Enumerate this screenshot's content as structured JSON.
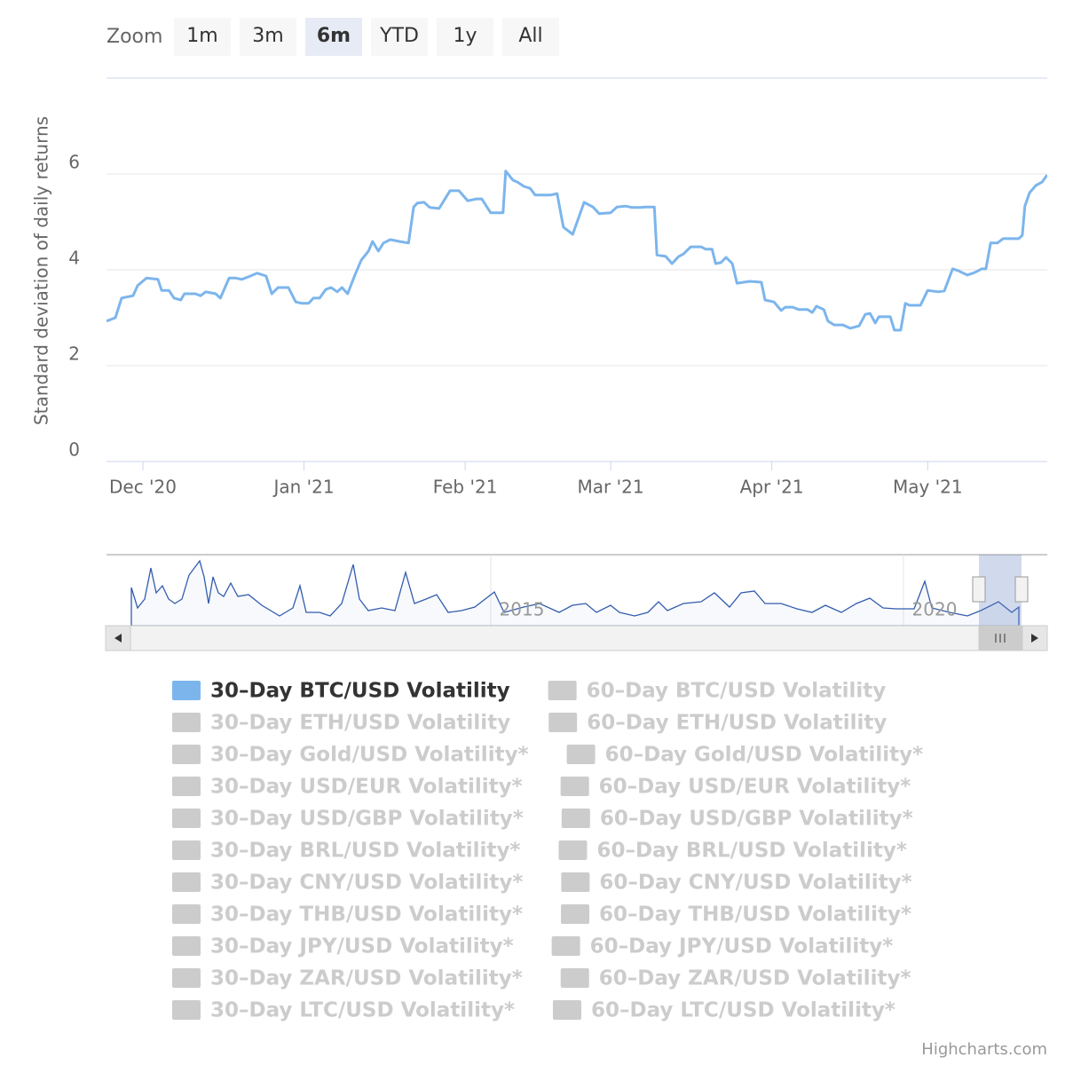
{
  "chart_data": {
    "type": "line",
    "zoom_label": "Zoom",
    "zoom_buttons": [
      "1m",
      "3m",
      "6m",
      "YTD",
      "1y",
      "All"
    ],
    "zoom_selected": 2,
    "y_label": "Standard deviation of daily returns",
    "x": [
      0,
      1.7,
      2.9,
      5.1,
      6.0,
      7.7,
      9.9,
      10.6,
      12.0,
      13.0,
      14.3,
      15.0,
      17.1,
      18.1,
      19.1,
      21.0,
      21.9,
      23.6,
      24.8,
      26.0,
      27.7,
      29.0,
      30.7,
      31.8,
      33.0,
      35.0,
      36.4,
      37.6,
      38.9,
      39.8,
      41.0,
      42.2,
      43.2,
      44.4,
      45.3,
      46.4,
      47.8,
      49.0,
      50.4,
      51.2,
      52.3,
      53.3,
      54.6,
      56.4,
      58.1,
      59.1,
      59.8,
      61.1,
      62.2,
      64.0,
      64.9,
      66.1,
      67.8,
      69.5,
      71.2,
      72.2,
      73.9,
      75.1,
      76.3,
      76.8,
      78.2,
      79.1,
      80.3,
      81.5,
      82.5,
      85.4,
      86.7,
      87.9,
      89.7,
      91.9,
      93.6,
      94.8,
      97.0,
      98.2,
      99.9,
      101.1,
      102.8,
      103.7,
      105.4,
      105.9,
      107.6,
      108.8,
      110.1,
      111.0,
      112.4,
      114.4,
      115.3,
      116.5,
      117.2,
      118.2,
      119.2,
      120.4,
      121.3,
      122.6,
      123.8,
      126.0,
      126.7,
      128.4,
      129.8,
      130.6,
      132.0,
      133.2,
      134.9,
      135.8,
      136.6,
      138.0,
      138.8,
      140.0,
      141.7,
      143.1,
      144.8,
      146.0,
      146.9,
      147.9,
      148.6,
      150.8,
      151.6,
      152.8,
      153.7,
      154.5,
      156.6,
      158.0,
      160.0,
      161.2,
      162.8,
      163.9,
      165.6,
      167.0,
      168.4,
      169.2,
      170.1,
      171.4,
      172.5,
      175.5,
      176.2,
      176.7,
      177.6,
      178.8,
      180.0,
      181.0
    ],
    "series": [
      {
        "name": "30–Day BTC/USD Volatility",
        "color": "#7cb5ec",
        "values": [
          2.93,
          3.0,
          3.41,
          3.46,
          3.67,
          3.83,
          3.8,
          3.57,
          3.57,
          3.41,
          3.37,
          3.5,
          3.5,
          3.46,
          3.54,
          3.5,
          3.41,
          3.83,
          3.83,
          3.8,
          3.87,
          3.93,
          3.87,
          3.5,
          3.63,
          3.63,
          3.33,
          3.3,
          3.3,
          3.41,
          3.41,
          3.59,
          3.63,
          3.54,
          3.63,
          3.5,
          3.89,
          4.2,
          4.39,
          4.59,
          4.39,
          4.56,
          4.63,
          4.59,
          4.56,
          5.31,
          5.39,
          5.41,
          5.3,
          5.28,
          5.44,
          5.65,
          5.65,
          5.44,
          5.48,
          5.48,
          5.19,
          5.19,
          5.19,
          6.06,
          5.87,
          5.83,
          5.74,
          5.7,
          5.56,
          5.56,
          5.59,
          4.89,
          4.74,
          5.41,
          5.31,
          5.17,
          5.19,
          5.31,
          5.33,
          5.3,
          5.3,
          5.31,
          5.31,
          4.31,
          4.28,
          4.13,
          4.28,
          4.33,
          4.48,
          4.48,
          4.43,
          4.43,
          4.13,
          4.15,
          4.26,
          4.13,
          3.72,
          3.74,
          3.76,
          3.74,
          3.37,
          3.33,
          3.15,
          3.22,
          3.22,
          3.17,
          3.17,
          3.11,
          3.24,
          3.17,
          2.93,
          2.85,
          2.85,
          2.78,
          2.83,
          3.07,
          3.09,
          2.89,
          3.02,
          3.02,
          2.74,
          2.74,
          3.3,
          3.26,
          3.26,
          3.57,
          3.54,
          3.56,
          4.02,
          3.98,
          3.89,
          3.94,
          4.02,
          4.02,
          4.56,
          4.56,
          4.65,
          4.65,
          4.72,
          5.33,
          5.61,
          5.76,
          5.83,
          5.98
        ]
      }
    ],
    "hidden_series": [
      {
        "name": "60–Day BTC/USD Volatility",
        "color": "#cccccc"
      },
      {
        "name": "30–Day ETH/USD Volatility",
        "color": "#cccccc"
      },
      {
        "name": "60–Day ETH/USD Volatility",
        "color": "#cccccc"
      },
      {
        "name": "30–Day Gold/USD Volatility*",
        "color": "#cccccc"
      },
      {
        "name": "60–Day Gold/USD Volatility*",
        "color": "#cccccc"
      },
      {
        "name": "30–Day USD/EUR Volatility*",
        "color": "#cccccc"
      },
      {
        "name": "60–Day USD/EUR Volatility*",
        "color": "#cccccc"
      },
      {
        "name": "30–Day USD/GBP Volatility*",
        "color": "#cccccc"
      },
      {
        "name": "60–Day USD/GBP Volatility*",
        "color": "#cccccc"
      },
      {
        "name": "30–Day BRL/USD Volatility*",
        "color": "#cccccc"
      },
      {
        "name": "60–Day BRL/USD Volatility*",
        "color": "#cccccc"
      },
      {
        "name": "30–Day CNY/USD Volatility*",
        "color": "#cccccc"
      },
      {
        "name": "60–Day CNY/USD Volatility*",
        "color": "#cccccc"
      },
      {
        "name": "30–Day THB/USD Volatility*",
        "color": "#cccccc"
      },
      {
        "name": "60–Day THB/USD Volatility*",
        "color": "#cccccc"
      },
      {
        "name": "30–Day JPY/USD Volatility*",
        "color": "#cccccc"
      },
      {
        "name": "60–Day JPY/USD Volatility*",
        "color": "#cccccc"
      },
      {
        "name": "30–Day ZAR/USD Volatility*",
        "color": "#cccccc"
      },
      {
        "name": "60–Day ZAR/USD Volatility*",
        "color": "#cccccc"
      },
      {
        "name": "30–Day LTC/USD Volatility*",
        "color": "#cccccc"
      },
      {
        "name": "60–Day LTC/USD Volatility*",
        "color": "#cccccc"
      }
    ],
    "xlim": [
      0,
      181
    ],
    "xticks": [
      {
        "value": 7,
        "label": "Dec '20"
      },
      {
        "value": 38,
        "label": "Jan '21"
      },
      {
        "value": 69,
        "label": "Feb '21"
      },
      {
        "value": 97,
        "label": "Mar '21"
      },
      {
        "value": 128,
        "label": "Apr '21"
      },
      {
        "value": 158,
        "label": "May '21"
      }
    ],
    "ylim": [
      0,
      8
    ],
    "yticks": [
      0,
      2,
      4,
      6
    ],
    "grid": true,
    "navigator_labels": [
      "2015",
      "2020"
    ],
    "credits": "Highcharts.com"
  }
}
